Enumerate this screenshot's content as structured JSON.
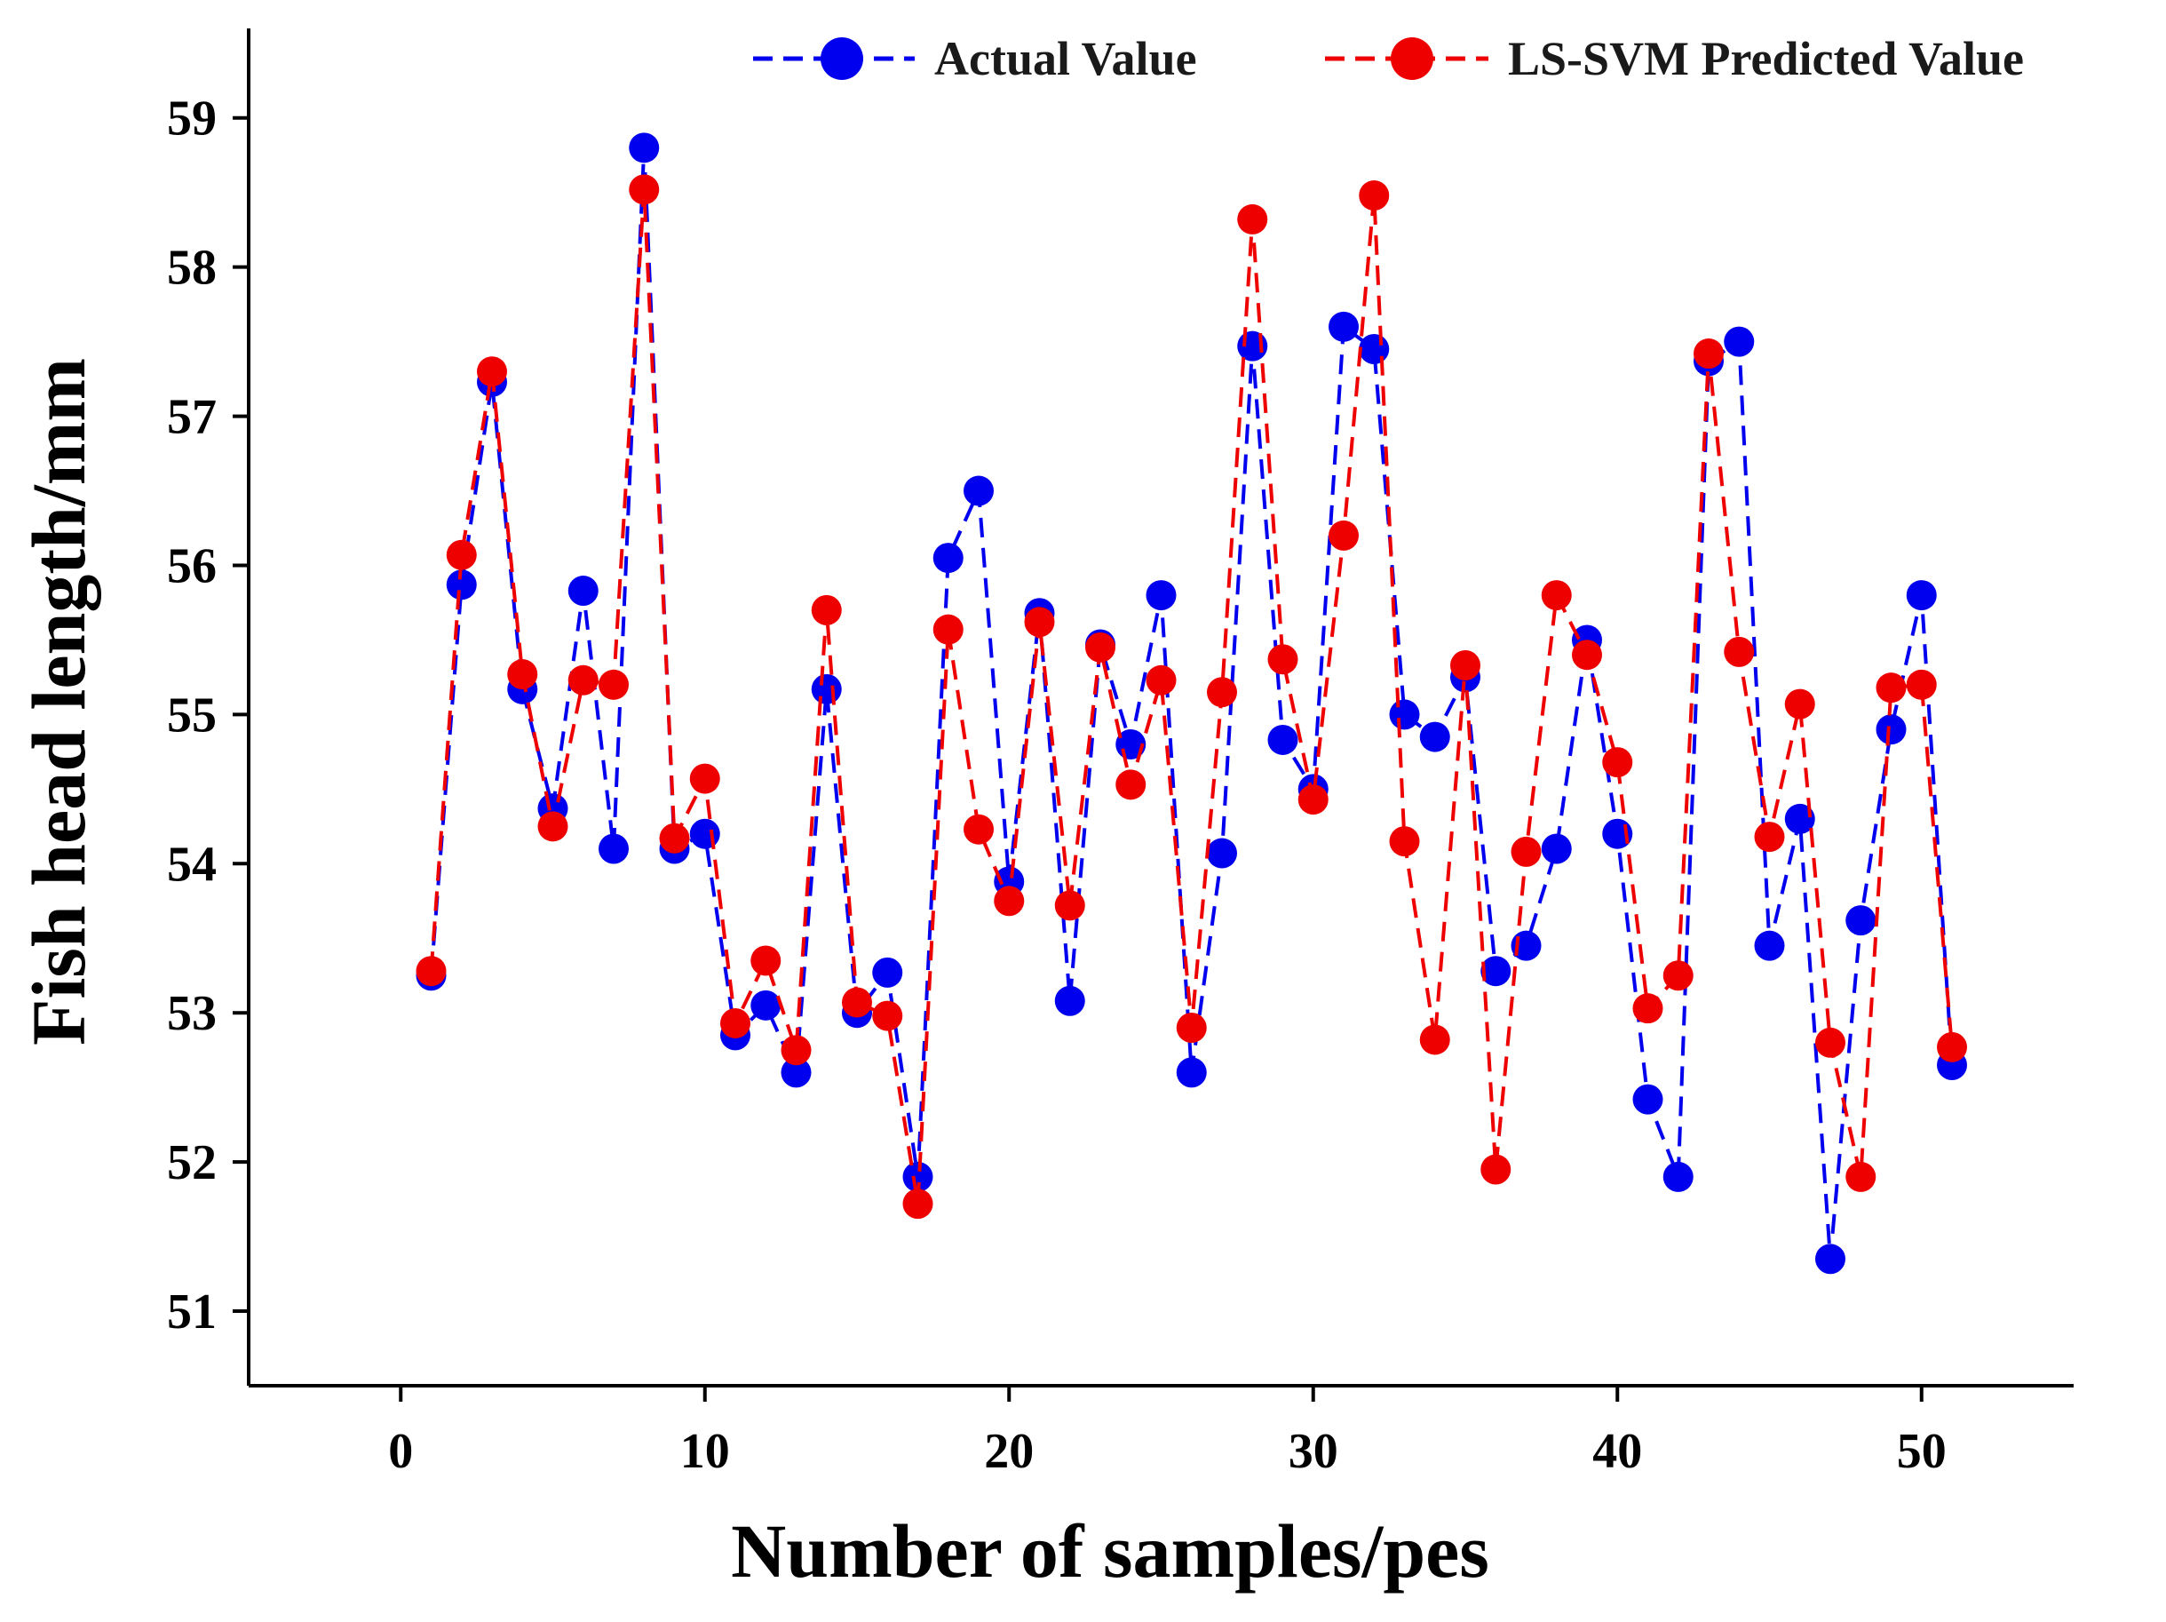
{
  "chart_data": {
    "type": "line",
    "title": "",
    "xlabel": "Number of samples/pes",
    "ylabel": "Fish head length/mm",
    "xlim": [
      -5,
      55
    ],
    "ylim": [
      50.5,
      59.6
    ],
    "xticks": [
      0,
      10,
      20,
      30,
      40,
      50
    ],
    "yticks": [
      51,
      52,
      53,
      54,
      55,
      56,
      57,
      58,
      59
    ],
    "grid": false,
    "legend_position": "top-right",
    "x": [
      1,
      2,
      3,
      4,
      5,
      6,
      7,
      8,
      9,
      10,
      11,
      12,
      13,
      14,
      15,
      16,
      17,
      18,
      19,
      20,
      21,
      22,
      23,
      24,
      25,
      26,
      27,
      28,
      29,
      30,
      31,
      32,
      33,
      34,
      35,
      36,
      37,
      38,
      39,
      40,
      41,
      42,
      43,
      44,
      45,
      46,
      47,
      48,
      49,
      50,
      51
    ],
    "series": [
      {
        "name": "Actual Value",
        "color": "#0000ee",
        "marker": "circle",
        "line_style": "dashed",
        "values": [
          53.25,
          55.87,
          57.23,
          55.17,
          54.37,
          55.83,
          54.1,
          58.8,
          54.1,
          54.2,
          52.85,
          53.05,
          52.6,
          55.17,
          53.0,
          53.27,
          51.9,
          56.05,
          56.5,
          53.88,
          55.68,
          53.08,
          55.47,
          54.8,
          55.8,
          52.6,
          54.07,
          57.47,
          54.83,
          54.5,
          57.6,
          57.45,
          55.0,
          54.85,
          55.25,
          53.28,
          53.45,
          54.1,
          55.5,
          54.2,
          52.42,
          51.9,
          57.37,
          57.5,
          53.45,
          54.3,
          51.35,
          53.62,
          54.9,
          55.8,
          52.65
        ]
      },
      {
        "name": "LS-SVM Predicted Value",
        "color": "#ee0000",
        "marker": "circle",
        "line_style": "dashed",
        "values": [
          53.28,
          56.07,
          57.3,
          55.27,
          54.25,
          55.23,
          55.2,
          58.52,
          54.17,
          54.57,
          52.93,
          53.35,
          52.75,
          55.7,
          53.07,
          52.98,
          51.72,
          55.57,
          54.23,
          53.75,
          55.62,
          53.72,
          55.45,
          54.53,
          55.23,
          52.9,
          55.15,
          58.32,
          55.37,
          54.43,
          56.2,
          58.48,
          54.15,
          52.82,
          55.33,
          51.95,
          54.08,
          55.8,
          55.4,
          54.68,
          53.03,
          53.25,
          57.42,
          55.42,
          54.18,
          55.07,
          52.8,
          51.9,
          55.18,
          55.2,
          52.77
        ]
      }
    ]
  }
}
